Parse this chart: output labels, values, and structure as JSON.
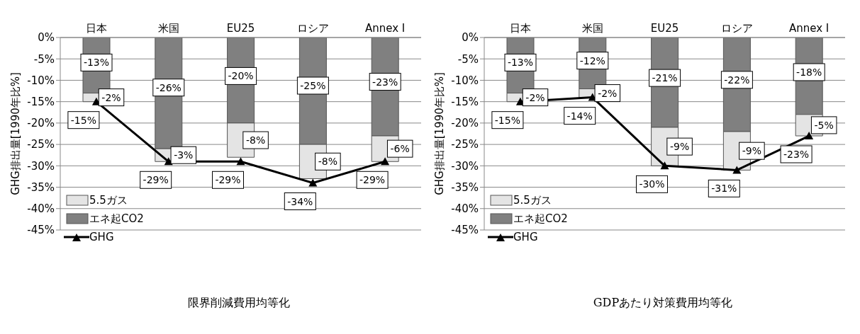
{
  "chart_data": [
    {
      "type": "bar",
      "stacked": true,
      "title": "限界削減費用均等化",
      "ylabel": "GHG排出量[1990年比%]",
      "categories": [
        "日本",
        "米国",
        "EU25",
        "ロシア",
        "Annex I"
      ],
      "ylim": [
        -45,
        0
      ],
      "yticks": [
        {
          "value": 0,
          "label": "0%"
        },
        {
          "value": -5,
          "label": "-5%"
        },
        {
          "value": -10,
          "label": "-10%"
        },
        {
          "value": -15,
          "label": "-15%"
        },
        {
          "value": -20,
          "label": "-20%"
        },
        {
          "value": -25,
          "label": "-25%"
        },
        {
          "value": -30,
          "label": "-30%"
        },
        {
          "value": -35,
          "label": "-35%"
        },
        {
          "value": -40,
          "label": "-40%"
        },
        {
          "value": -45,
          "label": "-45%"
        }
      ],
      "grid": "y",
      "legend": "bottom left",
      "marker": "triangle",
      "series": [
        {
          "name": "エネ起CO2",
          "color": "#808080",
          "values": [
            -13,
            -26,
            -20,
            -25,
            -23
          ],
          "value_labels": [
            "-13%",
            "-26%",
            "-20%",
            "-25%",
            "-23%"
          ]
        },
        {
          "name": "5.5ガス",
          "color": "#e4e4e4",
          "values": [
            -2,
            -3,
            -8,
            -8,
            -6
          ],
          "value_labels": [
            "-2%",
            "-3%",
            "-8%",
            "-8%",
            "-6%"
          ]
        },
        {
          "name": "GHG",
          "type": "line",
          "color": "#000000",
          "values": [
            -15,
            -29,
            -29,
            -34,
            -29
          ],
          "value_labels": [
            "-15%",
            "-29%",
            "-29%",
            "-34%",
            "-29%"
          ]
        }
      ]
    },
    {
      "type": "bar",
      "stacked": true,
      "title": "GDPあたり対策費用均等化",
      "ylabel": "GHG排出量[1990年比%]",
      "categories": [
        "日本",
        "米国",
        "EU25",
        "ロシア",
        "Annex I"
      ],
      "ylim": [
        -45,
        0
      ],
      "yticks": [
        {
          "value": 0,
          "label": "0%"
        },
        {
          "value": -5,
          "label": "-5%"
        },
        {
          "value": -10,
          "label": "-10%"
        },
        {
          "value": -15,
          "label": "-15%"
        },
        {
          "value": -20,
          "label": "-20%"
        },
        {
          "value": -25,
          "label": "-25%"
        },
        {
          "value": -30,
          "label": "-30%"
        },
        {
          "value": -35,
          "label": "-35%"
        },
        {
          "value": -40,
          "label": "-40%"
        },
        {
          "value": -45,
          "label": "-45%"
        }
      ],
      "grid": "y",
      "legend": "bottom left",
      "marker": "triangle",
      "series": [
        {
          "name": "エネ起CO2",
          "color": "#808080",
          "values": [
            -13,
            -12,
            -21,
            -22,
            -18
          ],
          "value_labels": [
            "-13%",
            "-12%",
            "-21%",
            "-22%",
            "-18%"
          ]
        },
        {
          "name": "5.5ガス",
          "color": "#e4e4e4",
          "values": [
            -2,
            -2,
            -9,
            -9,
            -5
          ],
          "value_labels": [
            "-2%",
            "-2%",
            "-9%",
            "-9%",
            "-5%"
          ]
        },
        {
          "name": "GHG",
          "type": "line",
          "color": "#000000",
          "values": [
            -15,
            -14,
            -30,
            -31,
            -23
          ],
          "value_labels": [
            "-15%",
            "-14%",
            "-30%",
            "-31%",
            "-23%"
          ]
        }
      ]
    }
  ]
}
